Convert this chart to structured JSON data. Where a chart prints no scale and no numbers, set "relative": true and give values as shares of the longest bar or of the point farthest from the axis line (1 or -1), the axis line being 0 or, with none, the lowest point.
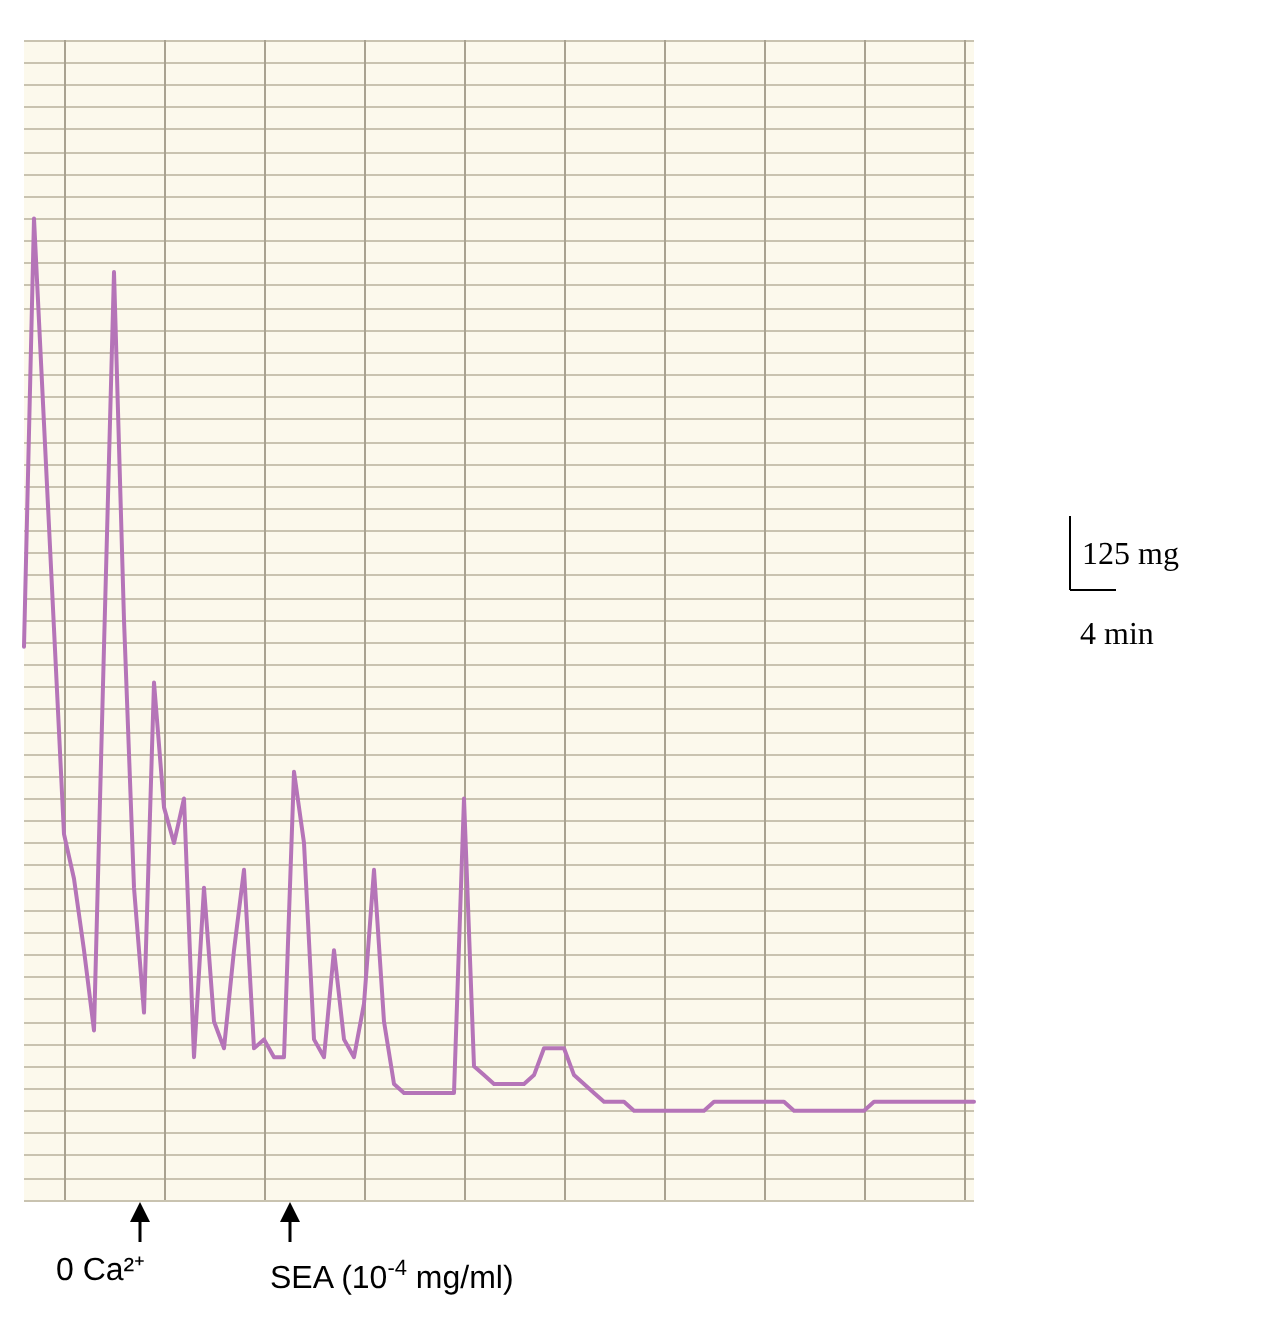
{
  "chart_data": {
    "type": "line",
    "relative": true,
    "grid": true,
    "line_style": "solid",
    "categories": [
      null,
      null,
      null,
      null,
      null,
      null,
      null,
      null,
      null,
      null,
      null,
      null,
      null,
      null,
      null,
      null,
      null,
      null,
      null,
      null,
      null,
      null,
      null,
      null,
      null,
      null,
      null,
      null,
      null,
      null,
      null,
      null,
      null,
      null,
      null,
      null,
      null,
      null,
      null,
      null,
      null,
      null,
      null,
      null,
      null,
      null,
      null,
      null,
      null,
      null,
      null,
      null,
      null,
      null,
      null,
      null,
      null,
      null,
      null,
      null,
      null,
      null,
      null,
      null,
      null,
      null,
      null,
      null,
      null,
      null,
      null,
      null,
      null,
      null,
      null,
      null,
      null,
      null,
      null,
      null,
      null,
      null,
      null,
      null,
      null,
      null,
      null,
      null,
      null,
      null,
      null,
      null,
      null,
      null,
      null,
      null
    ],
    "series": [
      {
        "color": "#b574b8",
        "values": [
          0.52,
          1,
          0.77,
          0.54,
          0.31,
          0.26,
          0.18,
          0.09,
          0.52,
          0.94,
          0.55,
          0.25,
          0.11,
          0.48,
          0.34,
          0.3,
          0.35,
          0.06,
          0.25,
          0.1,
          0.07,
          0.18,
          0.27,
          0.07,
          0.08,
          0.06,
          0.06,
          0.38,
          0.3,
          0.08,
          0.06,
          0.18,
          0.08,
          0.06,
          0.12,
          0.27,
          0.1,
          0.03,
          0.02,
          0.02,
          0.02,
          0.02,
          0.02,
          0.02,
          0.35,
          0.05,
          0.04,
          0.03,
          0.03,
          0.03,
          0.03,
          0.04,
          0.07,
          0.07,
          0.07,
          0.04,
          0.03,
          0.02,
          0.01,
          0.01,
          0.01,
          0,
          0,
          0,
          0,
          0,
          0,
          0,
          0,
          0.01,
          0.01,
          0.01,
          0.01,
          0.01,
          0.01,
          0.01,
          0.01,
          0,
          0,
          0,
          0,
          0,
          0,
          0,
          0,
          0.01,
          0.01,
          0.01,
          0.01,
          0.01,
          0.01,
          0.01,
          0.01,
          0.01,
          0.01,
          0.01
        ]
      }
    ],
    "annotations": [
      "125 mg",
      "4 min",
      "0 Ca²⁺",
      "SEA (10$^{-4}$ mg/ml)"
    ]
  }
}
